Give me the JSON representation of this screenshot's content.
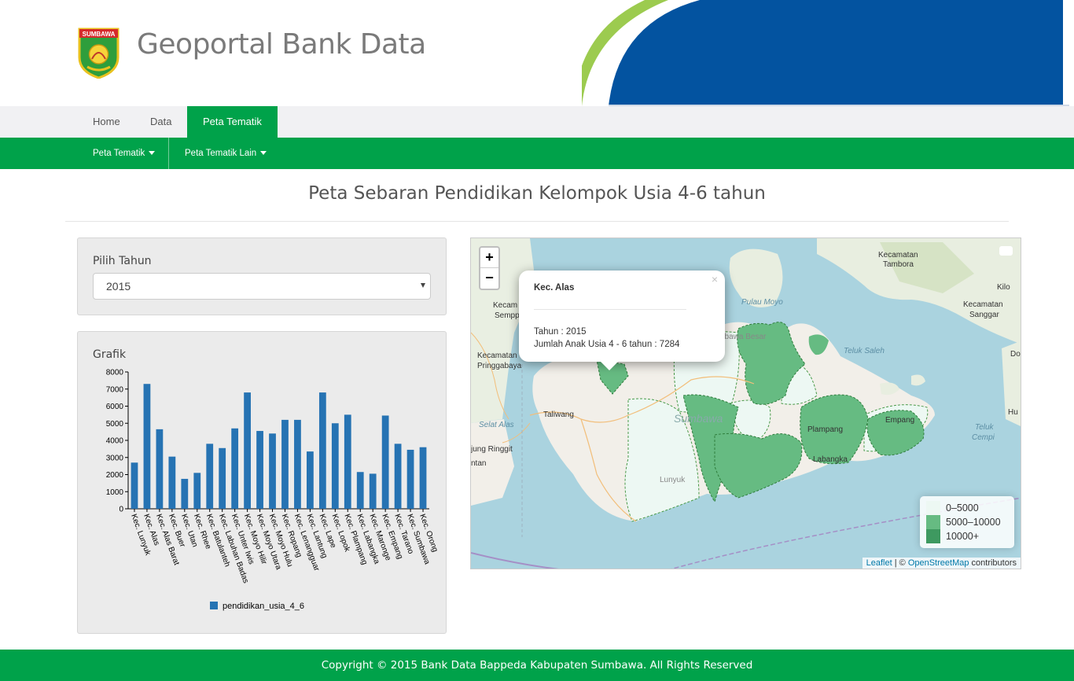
{
  "header": {
    "logo_text": "SUMBAWA",
    "site_title": "Geoportal Bank Data"
  },
  "nav": {
    "items": [
      {
        "label": "Home",
        "active": false
      },
      {
        "label": "Data",
        "active": false
      },
      {
        "label": "Peta Tematik",
        "active": true
      }
    ]
  },
  "subnav": {
    "items": [
      {
        "label": "Peta Tematik"
      },
      {
        "label": "Peta Tematik Lain"
      }
    ]
  },
  "page": {
    "title": "Peta Sebaran Pendidikan Kelompok Usia 4-6 tahun"
  },
  "year_panel": {
    "label": "Pilih Tahun",
    "selected": "2015"
  },
  "chart_panel": {
    "label": "Grafik"
  },
  "chart_data": {
    "type": "bar",
    "title": "",
    "xlabel": "",
    "ylabel": "",
    "ylim": [
      0,
      8000
    ],
    "yticks": [
      0,
      1000,
      2000,
      3000,
      4000,
      5000,
      6000,
      7000,
      8000
    ],
    "legend": "bottom",
    "color": "#2673b3",
    "categories": [
      "Kec. Lunyuk",
      "Kec. Alas",
      "Kec. Alas Barat",
      "Kec. Buer",
      "Kec. Utan",
      "Kec. Rhee",
      "Kec. Batulanteh",
      "Kec. Labuhan Badas",
      "Kec. Unter Iwis",
      "Kec. Moyo Hilir",
      "Kec. Moyo Utara",
      "Kec. Moyo Hulu",
      "Kec. Ropang",
      "Kec. Lenangguar",
      "Kec. Lantung",
      "Kec. Lape",
      "Kec. Lopok",
      "Kec. Plampang",
      "Kec. Labangka",
      "Kec. Maronge",
      "Kec. Empang",
      "Kec. Tarano",
      "Kec. Sumbawa",
      "Kec. Orong"
    ],
    "series": [
      {
        "name": "pendidikan_usia_4_6",
        "values": [
          2700,
          7300,
          4650,
          3050,
          1750,
          2100,
          3800,
          3550,
          4700,
          6800,
          4550,
          4400,
          5200,
          5200,
          3350,
          6800,
          5000,
          5500,
          2150,
          2050,
          5450,
          3800,
          3450,
          3600
        ]
      }
    ]
  },
  "map": {
    "zoom_in": "+",
    "zoom_out": "−",
    "popup": {
      "close": "×",
      "title": "Kec. Alas",
      "line1": "Tahun : 2015",
      "line2": "Jumlah Anak Usia 4 - 6 tahun : 7284"
    },
    "labels": {
      "pulau_moyo": "Pulau Moyo",
      "kec_tambora_1": "Kecamatan",
      "kec_tambora_2": "Tambora",
      "kilo": "Kilo",
      "kec_sanggar_1": "Kecamatan",
      "kec_sanggar_2": "Sanggar",
      "kecam": "Kecam",
      "sempp": "Sempp",
      "kec_pring_1": "Kecamatan",
      "kec_pring_2": "Pringgabaya",
      "teluk_saleh": "Teluk Saleh",
      "dor": "Dor",
      "taliwang": "Taliwang",
      "sumbawa_big": "Sumbawa",
      "plampang": "Plampang",
      "empang": "Empang",
      "hu": "Hu",
      "selat_alas": "Selat Alas",
      "jung_ringgit": "jung Ringgit",
      "ntan": "ntan",
      "labangka": "Labangka",
      "lunyuk": "Lunyuk",
      "teluk_cempi_1": "Teluk",
      "teluk_cempi_2": "Cempi",
      "sumbawa_besar": "Sumbawa Besar"
    },
    "legend": [
      {
        "label": "0–5000",
        "color": "#edf8f3"
      },
      {
        "label": "5000–10000",
        "color": "#66bb82"
      },
      {
        "label": "10000+",
        "color": "#3e9960"
      }
    ],
    "attribution": {
      "leaflet": "Leaflet",
      "sep": " | © ",
      "osm": "OpenStreetMap",
      "suffix": " contributors"
    },
    "colors": {
      "sea": "#aad3df",
      "land": "#f2efe9",
      "green": "#e8eee0"
    }
  },
  "footer": {
    "text": "Copyright © 2015 Bank Data Bappeda Kabupaten Sumbawa. All Rights Reserved"
  }
}
